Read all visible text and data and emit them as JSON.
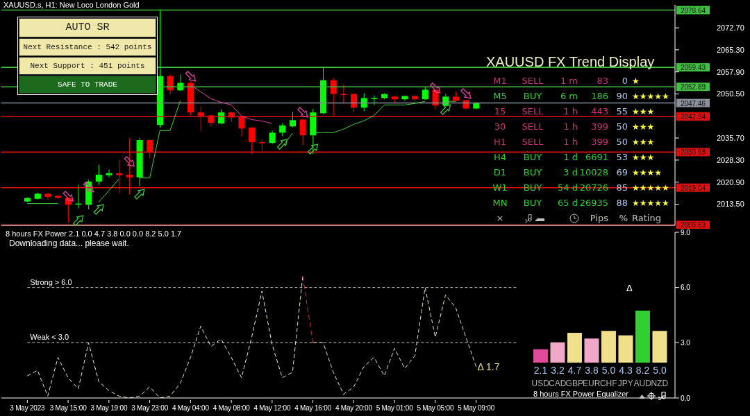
{
  "chart_data": [
    {
      "type": "candlestick",
      "title": "XAUUSD.s, H1: New Loco London Gold",
      "categories": [
        null,
        null,
        null,
        null,
        null,
        null,
        null,
        null,
        null,
        null,
        null,
        null,
        null,
        null,
        null,
        null,
        null,
        null,
        null,
        null,
        null,
        null,
        null,
        null,
        null,
        null,
        null,
        null,
        null,
        null,
        null,
        null,
        null,
        null,
        null,
        null,
        null,
        null,
        null,
        null,
        null,
        null,
        null,
        null,
        null,
        null,
        null,
        null,
        null,
        null,
        null,
        null,
        null,
        null,
        null,
        null,
        null,
        null,
        null,
        null,
        null,
        null,
        null,
        null
      ],
      "ohlc": [
        [
          2014.4,
          2015.8,
          2014.2,
          2015.6
        ],
        [
          2015.3,
          2017.4,
          2015.1,
          2017.0
        ],
        [
          2017.0,
          2017.2,
          2015.1,
          2016.0
        ],
        [
          2016.3,
          2016.7,
          2015.3,
          2015.6
        ],
        [
          2015.6,
          2015.8,
          2007.3,
          2013.3
        ],
        [
          2013.5,
          2020.0,
          2012.1,
          2013.7
        ],
        [
          2013.3,
          2021.8,
          2011.7,
          2021.1
        ],
        [
          2021.1,
          2026.7,
          2020.0,
          2023.4
        ],
        [
          2023.2,
          2025.1,
          2022.5,
          2023.9
        ],
        [
          2023.9,
          2028.5,
          2017.2,
          2023.2
        ],
        [
          2023.4,
          2035.7,
          2016.7,
          2022.5
        ],
        [
          2022.5,
          2035.7,
          2019.5,
          2035.0
        ],
        [
          2035.0,
          2035.2,
          2028.8,
          2031.1
        ],
        [
          2040.1,
          2078.9,
          2039.2,
          2056.5
        ],
        [
          2056.5,
          2057.0,
          2050.3,
          2051.7
        ],
        [
          2051.7,
          2057.0,
          2051.5,
          2054.2
        ],
        [
          2054.2,
          2054.7,
          2043.3,
          2044.3
        ],
        [
          2044.3,
          2046.3,
          2038.0,
          2043.1
        ],
        [
          2043.3,
          2043.5,
          2039.6,
          2040.8
        ],
        [
          2040.6,
          2045.2,
          2040.4,
          2044.3
        ],
        [
          2044.3,
          2044.5,
          2041.0,
          2042.6
        ],
        [
          2043.1,
          2043.3,
          2036.2,
          2038.9
        ],
        [
          2039.2,
          2039.4,
          2030.4,
          2034.3
        ],
        [
          2034.3,
          2035.2,
          2031.5,
          2034.1
        ],
        [
          2034.1,
          2038.2,
          2033.6,
          2037.5
        ],
        [
          2037.5,
          2040.6,
          2036.4,
          2039.9
        ],
        [
          2039.6,
          2044.5,
          2039.2,
          2041.7
        ],
        [
          2041.9,
          2042.1,
          2033.4,
          2036.6
        ],
        [
          2036.6,
          2045.4,
          2030.4,
          2044.3
        ],
        [
          2044.0,
          2059.3,
          2043.8,
          2055.1
        ],
        [
          2055.1,
          2055.8,
          2043.1,
          2050.5
        ],
        [
          2050.5,
          2053.7,
          2047.3,
          2050.3
        ],
        [
          2050.5,
          2050.7,
          2044.3,
          2045.9
        ],
        [
          2045.9,
          2050.7,
          2044.7,
          2049.1
        ],
        [
          2049.0,
          2050.0,
          2046.8,
          2049.1
        ],
        [
          2049.1,
          2050.7,
          2048.7,
          2050.5
        ],
        [
          2049.6,
          2049.8,
          2047.3,
          2048.7
        ],
        [
          2048.7,
          2050.0,
          2048.2,
          2049.8
        ],
        [
          2049.8,
          2050.0,
          2048.0,
          2048.7
        ],
        [
          2048.7,
          2052.8,
          2048.5,
          2051.9
        ],
        [
          2051.9,
          2052.1,
          2045.4,
          2046.6
        ],
        [
          2046.6,
          2050.5,
          2046.4,
          2049.6
        ],
        [
          2049.6,
          2051.2,
          2048.0,
          2048.2
        ],
        [
          2048.4,
          2048.6,
          2045.2,
          2045.6
        ],
        [
          2045.6,
          2047.7,
          2045.4,
          2047.5
        ],
        null,
        null,
        null,
        null,
        null,
        null,
        null,
        null,
        null,
        null,
        null,
        null,
        null,
        null,
        null,
        null,
        null,
        null,
        null
      ],
      "series": [
        {
          "type": "line",
          "color": "#40d040",
          "values": [
            2013.7,
            2013.7,
            2013.7,
            2013.7,
            null,
            null,
            null,
            2014.2,
            2018.1,
            2022.0,
            null,
            2022.3,
            2022.3,
            2038.2,
            2038.2,
            2048.2,
            null,
            null,
            null,
            null,
            null,
            null,
            null,
            null,
            null,
            2032.9,
            2037.3,
            null,
            2037.5,
            2037.5,
            2037.5,
            2038.7,
            2040.3,
            2041.5,
            2043.3,
            2046.8,
            2046.8,
            2046.8,
            2047.3,
            2048.0,
            null,
            2048.0,
            2048.0,
            null,
            null,
            null,
            null,
            null,
            null,
            null,
            null,
            null,
            null,
            null,
            null,
            null,
            null,
            null,
            null,
            null,
            null,
            null,
            null,
            null
          ]
        },
        {
          "type": "line",
          "color": "#e040a0",
          "values": [
            null,
            null,
            null,
            null,
            null,
            null,
            null,
            null,
            null,
            null,
            null,
            null,
            null,
            null,
            null,
            null,
            2053.5,
            2051.2,
            2048.9,
            2047.7,
            2046.8,
            2043.1,
            2041.9,
            2041.4,
            2040.6,
            null,
            null,
            null,
            null,
            null,
            null,
            null,
            null,
            null,
            null,
            null,
            null,
            null,
            null,
            null,
            null,
            null,
            null,
            null,
            null,
            null,
            null,
            null,
            null,
            null,
            null,
            null,
            null,
            null,
            null,
            null,
            null,
            null,
            null,
            null,
            null,
            null,
            null,
            null
          ]
        }
      ],
      "ylim": [
        2006.4,
        2080.4
      ],
      "yticks": [
        {
          "value": 2072.7,
          "label": "2072.70"
        },
        {
          "value": 2065.3,
          "label": "2065.30"
        },
        {
          "value": 2057.9,
          "label": "2057.90"
        },
        {
          "value": 2050.5,
          "label": "2050.50"
        },
        {
          "value": 2035.7,
          "label": "2035.70"
        },
        {
          "value": 2028.3,
          "label": "2028.30"
        },
        {
          "value": 2020.9,
          "label": "2020.90"
        },
        {
          "value": 2013.5,
          "label": "2013.50"
        }
      ],
      "ref_lines": [
        {
          "axis": "y",
          "value": 2078.64,
          "label": "2078.64",
          "color": "#40c040"
        },
        {
          "axis": "y",
          "value": 2059.43,
          "label": "2059.43",
          "color": "#40c040"
        },
        {
          "axis": "y",
          "value": 2052.89,
          "label": "2052.89",
          "color": "#40c040"
        },
        {
          "axis": "y",
          "value": 2047.46,
          "label": "2047.46",
          "color": "#8a8f99"
        },
        {
          "axis": "y",
          "value": 2042.94,
          "label": "2042.94",
          "color": "#e01010"
        },
        {
          "axis": "y",
          "value": 2030.98,
          "label": "2030.98",
          "color": "#e01010"
        },
        {
          "axis": "y",
          "value": 2019.04,
          "label": "2019.04",
          "color": "#e01010"
        },
        {
          "axis": "y",
          "value": 2006.53,
          "label": "2006.53",
          "color": "#e01010"
        }
      ],
      "annotations": [
        "AUTO SR",
        "Next Resistance : 542 points",
        "Next Support : 451 points",
        "SAFE TO TRADE"
      ],
      "tick_labels": "y"
    },
    {
      "type": "line",
      "title": "8 hours FX Power 2.1 0.0 4.7 3.8 0.0 0.0 8.2 5.0 1.7",
      "subtitle": "Downloading data... please wait.",
      "categories": [
        "3 May 2023",
        null,
        null,
        null,
        "3 May 15:00",
        null,
        null,
        null,
        "3 May 19:00",
        null,
        null,
        null,
        "3 May 23:00",
        null,
        null,
        null,
        "4 May 04:00",
        null,
        null,
        null,
        "4 May 08:00",
        null,
        null,
        null,
        "4 May 12:00",
        null,
        null,
        null,
        "4 May 16:00",
        null,
        null,
        null,
        "4 May 20:00",
        null,
        null,
        null,
        "5 May 01:00",
        null,
        null,
        null,
        "5 May 05:00",
        null,
        null,
        null,
        "5 May 09:00",
        null,
        null,
        null,
        null,
        null,
        null,
        null,
        null,
        null,
        null,
        null,
        null,
        null,
        null,
        null,
        null,
        null,
        null,
        null
      ],
      "series": [
        {
          "color": "#eeeec4",
          "values": [
            1.2,
            1.5,
            0.1,
            2.2,
            1.1,
            0.5,
            3.0,
            0.9,
            0.4,
            0.1,
            0.0,
            0.1,
            0.6,
            0.0,
            0.1,
            0.8,
            2.2,
            3.9,
            2.8,
            3.2,
            2.2,
            1.1,
            3.3,
            5.8,
            2.9,
            1.1,
            1.4,
            6.6,
            null,
            null,
            null,
            null,
            null,
            null,
            null,
            null,
            null,
            null,
            null,
            null,
            null,
            null,
            null,
            null,
            null,
            null,
            null,
            null,
            null,
            null,
            null,
            null,
            null,
            null,
            null,
            null,
            null,
            null,
            null,
            null,
            null,
            null,
            null,
            null
          ]
        },
        {
          "color": "#d03048",
          "values": [
            null,
            null,
            null,
            null,
            null,
            null,
            null,
            null,
            null,
            null,
            null,
            null,
            null,
            null,
            null,
            null,
            null,
            null,
            null,
            null,
            null,
            null,
            null,
            null,
            null,
            null,
            null,
            6.6,
            3.0,
            null,
            null,
            null,
            null,
            null,
            null,
            null,
            null,
            null,
            null,
            null,
            null,
            null,
            null,
            null,
            null,
            null,
            null,
            null,
            null,
            null,
            null,
            null,
            null,
            null,
            null,
            null,
            null,
            null,
            null,
            null,
            null,
            null,
            null,
            null
          ]
        },
        {
          "color": "#d8f0c0",
          "values": [
            null,
            null,
            null,
            null,
            null,
            null,
            null,
            null,
            null,
            null,
            null,
            null,
            null,
            null,
            null,
            null,
            null,
            null,
            null,
            null,
            null,
            null,
            null,
            null,
            null,
            null,
            null,
            null,
            3.0,
            3.0,
            1.4,
            0.2,
            0.6,
            1.7,
            2.2,
            1.2,
            2.7,
            1.6,
            2.3,
            6.0,
            3.3,
            5.6,
            4.9,
            3.3,
            1.7,
            null,
            null,
            null,
            null,
            null,
            null,
            null,
            null,
            null,
            null,
            null,
            null,
            null,
            null,
            null,
            null,
            null,
            null,
            null
          ]
        }
      ],
      "ylim": [
        0,
        9
      ],
      "yticks": [
        {
          "value": 0,
          "label": "0.0"
        },
        {
          "value": 3,
          "label": "3.0"
        },
        {
          "value": 6,
          "label": "6.0"
        },
        {
          "value": 9,
          "label": "9.0"
        }
      ],
      "ref_lines": [
        {
          "axis": "y",
          "value": 6.0,
          "label": "Strong > 6.0",
          "color": "#c8c8c8",
          "line_style": "dashed"
        },
        {
          "axis": "y",
          "value": 3.0,
          "label": "Weak < 3.0",
          "color": "#c8c8c8",
          "line_style": "dashed"
        }
      ],
      "annotations": [
        {
          "text": "Δ 1.7",
          "x": "5 May 09:00",
          "y": 1.7
        }
      ],
      "line_style": "dashed"
    },
    {
      "type": "other",
      "title": "XAUUSD FX Trend Display",
      "annotations": [
        "M1",
        "SELL",
        "1 m",
        "83",
        "0",
        "★",
        "M5",
        "BUY",
        "6 m",
        "186",
        "90",
        "★★★★★",
        "15",
        "SELL",
        "1 h",
        "443",
        "55",
        "★★★",
        "30",
        "SELL",
        "1 h",
        "399",
        "50",
        "★★★",
        "H1",
        "SELL",
        "1 h",
        "399",
        "50",
        "★★★",
        "H4",
        "BUY",
        "1 d",
        "6691",
        "53",
        "★★★",
        "D1",
        "BUY",
        "3 d",
        "10028",
        "69",
        "★★★★",
        "W1",
        "BUY",
        "54 d",
        "20726",
        "85",
        "★★★★★",
        "MN",
        "BUY",
        "65 d",
        "26935",
        "88",
        "★★★★★",
        "×",
        "Pips",
        "%",
        "Rating"
      ],
      "colors": [
        "#d0307a",
        "#30d030",
        "#d0307a",
        "#d0307a",
        "#d0307a",
        "#30d030",
        "#30d030",
        "#30d030",
        "#30d030"
      ]
    },
    {
      "type": "bar",
      "categories": [
        "USD",
        "CAD",
        "GBP",
        "EUR",
        "CHF",
        "JPY",
        "AUD",
        "NZD"
      ],
      "values": [
        2.1,
        3.2,
        4.7,
        3.8,
        5.0,
        4.3,
        8.2,
        5.0
      ],
      "value_labels": [
        "2.1",
        "3.2",
        "4.7",
        "3.8",
        "5.0",
        "4.3",
        "8.2",
        "5.0"
      ],
      "colors": [
        "#e04c9c",
        "#f0a8c8",
        "#f0e08c",
        "#f0a8c8",
        "#f0e08c",
        "#f0e08c",
        "#30d030",
        "#f0e08c"
      ],
      "xlabel": "8 hours FX Power Equalizer",
      "annotations": [
        "Δ"
      ]
    }
  ]
}
